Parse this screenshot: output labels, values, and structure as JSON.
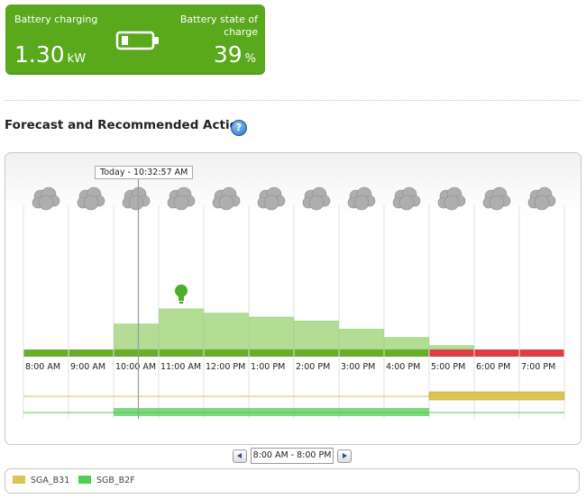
{
  "status": {
    "charging_label": "Battery charging",
    "charging_value": "1.30",
    "charging_unit": "kW",
    "soc_label": "Battery state of charge",
    "soc_value": "39",
    "soc_unit": "%",
    "battery_icon": "battery-low-icon",
    "card_color": "#5aa91d"
  },
  "section": {
    "title": "Forecast and Recommended Action",
    "help_icon": "question-mark-icon"
  },
  "forecast": {
    "now_label": "Today - 10:32:57 AM",
    "hours": [
      {
        "label": "8:00 AM",
        "weather": "cloudy",
        "action": "green",
        "level": 0
      },
      {
        "label": "9:00 AM",
        "weather": "cloudy",
        "action": "green",
        "level": 0
      },
      {
        "label": "10:00 AM",
        "weather": "cloudy",
        "action": "green",
        "level": 0.59
      },
      {
        "label": "11:00 AM",
        "weather": "cloudy",
        "action": "green",
        "level": 0.94
      },
      {
        "label": "12:00 PM",
        "weather": "cloudy",
        "action": "green",
        "level": 0.84
      },
      {
        "label": "1:00 PM",
        "weather": "cloudy",
        "action": "green",
        "level": 0.75
      },
      {
        "label": "2:00 PM",
        "weather": "cloudy",
        "action": "green",
        "level": 0.66
      },
      {
        "label": "3:00 PM",
        "weather": "cloudy",
        "action": "green",
        "level": 0.47
      },
      {
        "label": "4:00 PM",
        "weather": "cloudy",
        "action": "green",
        "level": 0.28
      },
      {
        "label": "5:00 PM",
        "weather": "cloudy",
        "action": "red",
        "level": 0.09
      },
      {
        "label": "6:00 PM",
        "weather": "cloudy",
        "action": "red",
        "level": 0
      },
      {
        "label": "7:00 PM",
        "weather": "cloudy",
        "action": "red",
        "level": 0
      }
    ],
    "recommend_icon": "lightbulb-icon",
    "recommend_hour_index": 3,
    "now_fraction_of_hour": 0.55,
    "now_hour_index": 2,
    "colors": {
      "action_green": "#6aac2c",
      "action_red": "#d9403f",
      "forecast_fill": "#b3dc94",
      "sga": "#d8c552",
      "sgb": "#52cc52"
    },
    "schedules": [
      {
        "name": "SGA_B31",
        "active_from_index": 9,
        "active_to_index": 12
      },
      {
        "name": "SGB_B2F",
        "active_from_index": 2,
        "active_to_index": 9
      }
    ]
  },
  "navigation": {
    "prev_icon": "arrow-left-icon",
    "range_label": "8:00 AM - 8:00 PM",
    "next_icon": "arrow-right-icon"
  },
  "legend": [
    {
      "label": "SGA_B31",
      "color": "#d8c552"
    },
    {
      "label": "SGB_B2F",
      "color": "#52cc52"
    }
  ]
}
